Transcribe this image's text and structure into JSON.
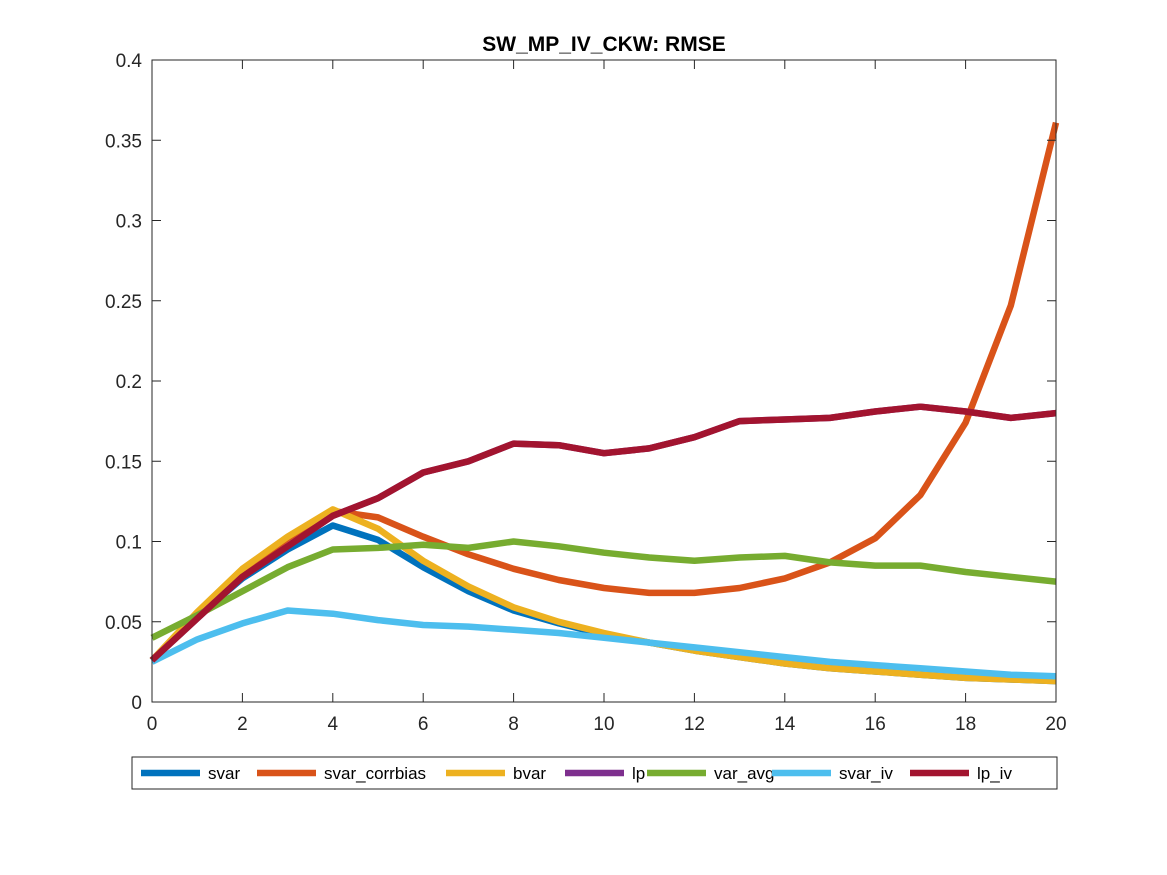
{
  "chart_data": {
    "type": "line",
    "title": "SW_MP_IV_CKW: RMSE",
    "xlabel": "",
    "ylabel": "",
    "xlim": [
      0,
      20
    ],
    "ylim": [
      0,
      0.4
    ],
    "x_ticks": [
      "0",
      "2",
      "4",
      "6",
      "8",
      "10",
      "12",
      "14",
      "16",
      "18",
      "20"
    ],
    "y_ticks": [
      "0",
      "0.05",
      "0.1",
      "0.15",
      "0.2",
      "0.25",
      "0.3",
      "0.35",
      "0.4"
    ],
    "grid": false,
    "legend_position": "bottom, horizontal",
    "x": [
      0,
      1,
      2,
      3,
      4,
      5,
      6,
      7,
      8,
      9,
      10,
      11,
      12,
      13,
      14,
      15,
      16,
      17,
      18,
      19,
      20
    ],
    "series": [
      {
        "name": "svar",
        "color": "#0072BD",
        "values": [
          0.026,
          0.053,
          0.077,
          0.095,
          0.11,
          0.101,
          0.084,
          0.069,
          0.057,
          0.049,
          0.042,
          0.037,
          0.032,
          0.028,
          0.024,
          0.021,
          0.019,
          0.017,
          0.015,
          0.014,
          0.013
        ]
      },
      {
        "name": "svar_corrbias",
        "color": "#D95319",
        "values": [
          0.026,
          0.055,
          0.082,
          0.102,
          0.119,
          0.115,
          0.103,
          0.092,
          0.083,
          0.076,
          0.071,
          0.068,
          0.068,
          0.071,
          0.077,
          0.087,
          0.102,
          0.129,
          0.174,
          0.247,
          0.361
        ]
      },
      {
        "name": "bvar",
        "color": "#EDB120",
        "values": [
          0.026,
          0.056,
          0.083,
          0.103,
          0.12,
          0.108,
          0.088,
          0.072,
          0.059,
          0.05,
          0.043,
          0.037,
          0.032,
          0.028,
          0.024,
          0.021,
          0.019,
          0.017,
          0.015,
          0.014,
          0.013
        ]
      },
      {
        "name": "lp",
        "color": "#7E2F8E",
        "values": [
          0.026,
          0.052,
          0.078,
          0.097,
          0.116,
          0.127,
          0.143,
          0.15,
          0.161,
          0.16,
          0.155,
          0.158,
          0.165,
          0.175,
          0.176,
          0.177,
          0.181,
          0.184,
          0.181,
          0.177,
          0.18
        ]
      },
      {
        "name": "var_avg",
        "color": "#77AC30",
        "values": [
          0.04,
          0.054,
          0.069,
          0.084,
          0.095,
          0.096,
          0.098,
          0.096,
          0.1,
          0.097,
          0.093,
          0.09,
          0.088,
          0.09,
          0.091,
          0.087,
          0.085,
          0.085,
          0.081,
          0.078,
          0.075
        ]
      },
      {
        "name": "svar_iv",
        "color": "#4DBEEE",
        "values": [
          0.025,
          0.039,
          0.049,
          0.057,
          0.055,
          0.051,
          0.048,
          0.047,
          0.045,
          0.043,
          0.04,
          0.037,
          0.034,
          0.031,
          0.028,
          0.025,
          0.023,
          0.021,
          0.019,
          0.017,
          0.016
        ]
      },
      {
        "name": "lp_iv",
        "color": "#A2142F",
        "values": [
          0.026,
          0.052,
          0.078,
          0.097,
          0.116,
          0.127,
          0.143,
          0.15,
          0.161,
          0.16,
          0.155,
          0.158,
          0.165,
          0.175,
          0.176,
          0.177,
          0.181,
          0.184,
          0.181,
          0.177,
          0.18
        ]
      }
    ]
  }
}
